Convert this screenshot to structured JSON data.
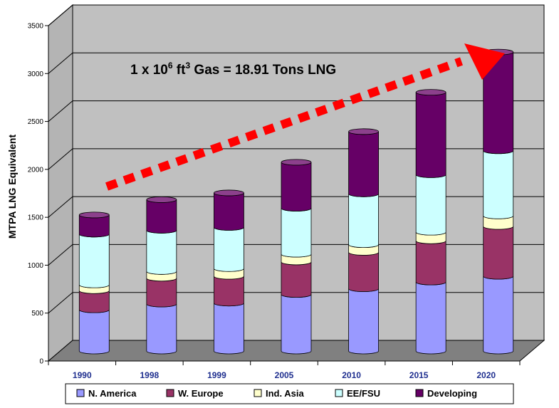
{
  "chart_data": {
    "type": "bar",
    "stacked": true,
    "style": "3d-cylinder",
    "title": "",
    "xlabel": "",
    "ylabel": "MTPA LNG Equivalent",
    "ylim": [
      0,
      3500
    ],
    "yticks": [
      "0",
      "500",
      "1000",
      "1500",
      "2000",
      "2500",
      "3000",
      "3500"
    ],
    "grid": true,
    "legend_position": "bottom",
    "categories": [
      "1990",
      "1998",
      "1999",
      "2005",
      "2010",
      "2015",
      "2020"
    ],
    "series": [
      {
        "name": "N. America",
        "color": "#9999ff",
        "values": [
          430,
          490,
          500,
          590,
          650,
          720,
          780
        ]
      },
      {
        "name": "W. Europe",
        "color": "#993366",
        "values": [
          200,
          270,
          280,
          340,
          380,
          430,
          520
        ]
      },
      {
        "name": "Ind. Asia",
        "color": "#ffffcc",
        "values": [
          60,
          70,
          80,
          80,
          80,
          90,
          110
        ]
      },
      {
        "name": "EE/FSU",
        "color": "#ccffff",
        "values": [
          530,
          430,
          430,
          480,
          530,
          600,
          680
        ]
      },
      {
        "name": "Developing",
        "color": "#660066",
        "values": [
          200,
          320,
          360,
          480,
          650,
          860,
          1030
        ]
      }
    ],
    "annotation": {
      "parts": [
        "1 x 10",
        "6",
        " ft",
        "3",
        " Gas = 18.91 Tons LNG"
      ],
      "arrow_color": "#ff0000"
    }
  }
}
